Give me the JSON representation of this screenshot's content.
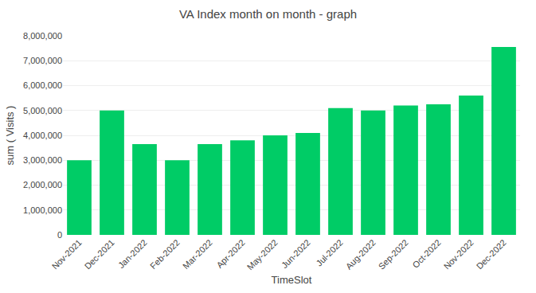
{
  "chart_data": {
    "type": "bar",
    "title": "VA Index month on month - graph",
    "xlabel": "TimeSlot",
    "ylabel": "sum ( Visits )",
    "categories": [
      "Nov-2021",
      "Dec-2021",
      "Jan-2022",
      "Feb-2022",
      "Mar-2022",
      "Apr-2022",
      "May-2022",
      "Jun-2022",
      "Jul-2022",
      "Aug-2022",
      "Sep-2022",
      "Oct-2022",
      "Nov-2022",
      "Dec-2022"
    ],
    "values": [
      3000000,
      5000000,
      3650000,
      3000000,
      3650000,
      3800000,
      4000000,
      4100000,
      5100000,
      5000000,
      5200000,
      5250000,
      5600000,
      7550000
    ],
    "color": "#00cc66",
    "ylim": [
      0,
      8000000
    ],
    "yticks": [
      0,
      {
        "value": 1000000,
        "label": "1,000,000"
      },
      {
        "value": 2000000,
        "label": "2,000,000"
      },
      {
        "value": 3000000,
        "label": "3,000,000"
      },
      {
        "value": 4000000,
        "label": "4,000,000"
      },
      {
        "value": 5000000,
        "label": "5,000,000"
      },
      {
        "value": 6000000,
        "label": "6,000,000"
      },
      {
        "value": 7000000,
        "label": "7,000,000"
      },
      {
        "value": 8000000,
        "label": "8,000,000"
      }
    ],
    "grid": true
  }
}
